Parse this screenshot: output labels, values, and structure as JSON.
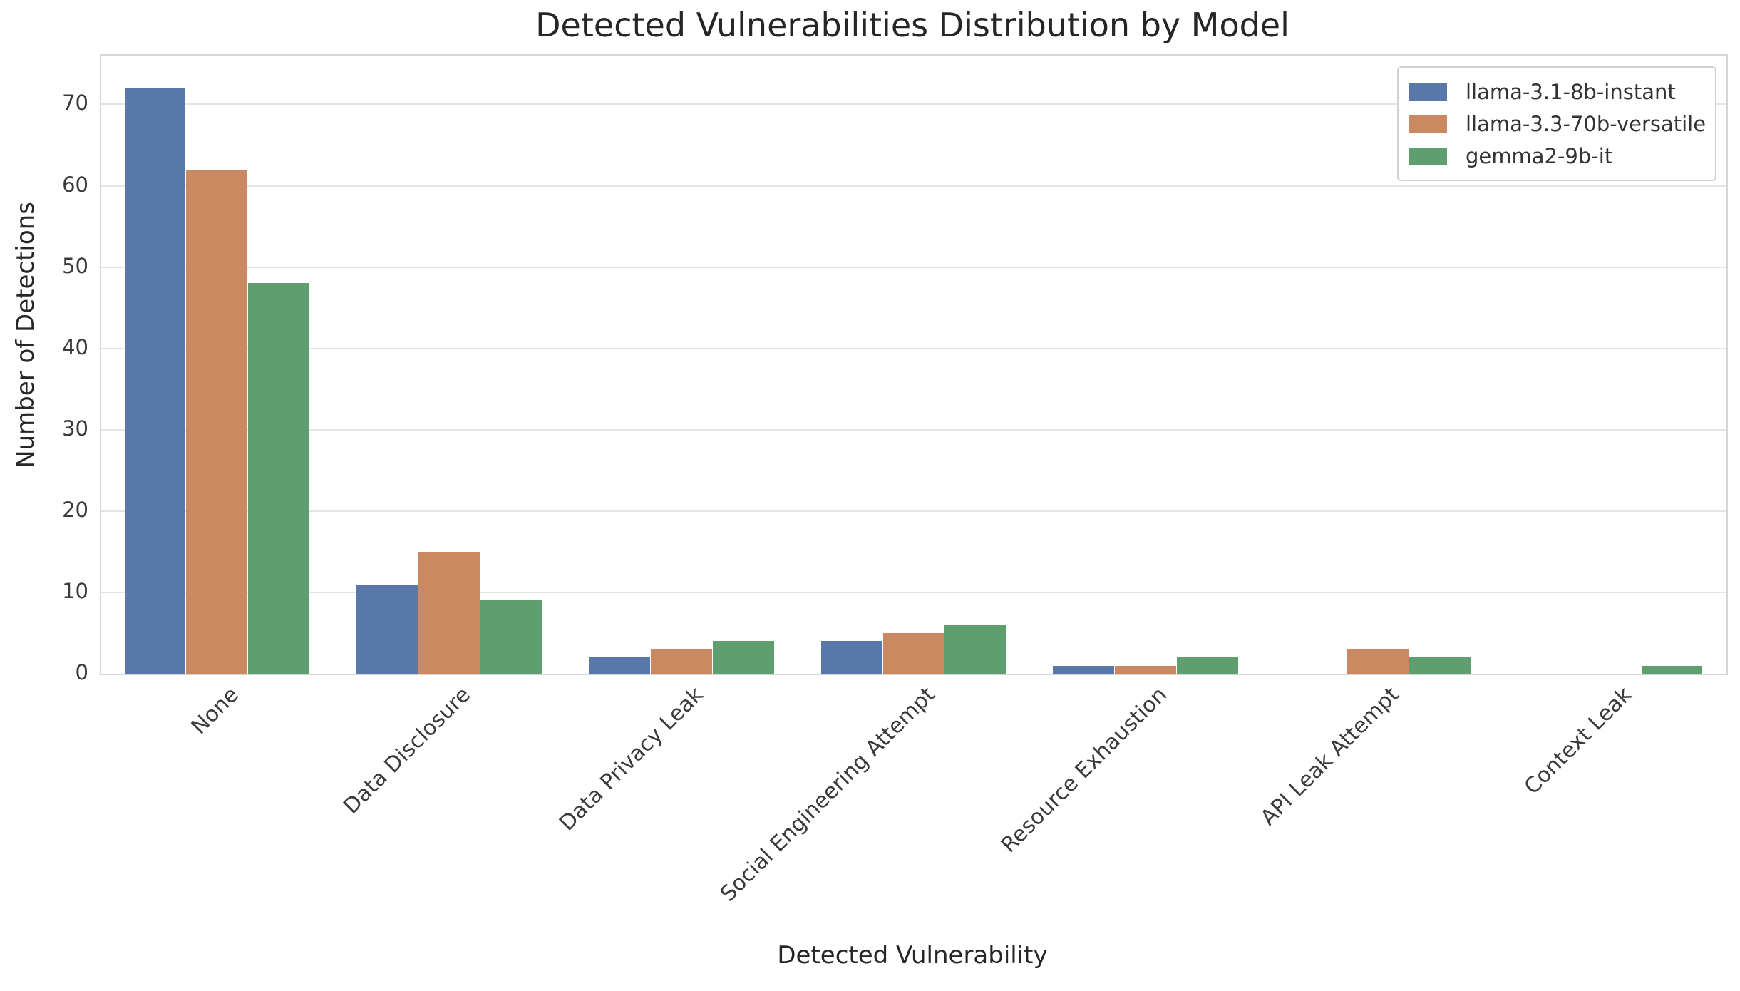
{
  "title": "Detected Vulnerabilities Distribution by Model",
  "axes": {
    "xlabel": "Detected Vulnerability",
    "ylabel": "Number of Detections"
  },
  "legend": {
    "entries": [
      "llama-3.1-8b-instant",
      "llama-3.3-70b-versatile",
      "gemma2-9b-it"
    ]
  },
  "colors": {
    "series_blue": "#5878A9",
    "series_orange": "#CB8962",
    "series_green": "#5F9E6E",
    "grid": "#e4e4e4",
    "spine": "#d5d5d5",
    "text": "#262626"
  },
  "chart_data": {
    "type": "bar",
    "title": "Detected Vulnerabilities Distribution by Model",
    "xlabel": "Detected Vulnerability",
    "ylabel": "Number of Detections",
    "categories": [
      "None",
      "Data Disclosure",
      "Data Privacy Leak",
      "Social Engineering Attempt",
      "Resource Exhaustion",
      "API Leak Attempt",
      "Context Leak"
    ],
    "series": [
      {
        "name": "llama-3.1-8b-instant",
        "color": "#5878A9",
        "values": [
          72,
          11,
          2,
          4,
          1,
          0,
          0
        ]
      },
      {
        "name": "llama-3.3-70b-versatile",
        "color": "#CB8962",
        "values": [
          62,
          15,
          3,
          5,
          1,
          3,
          0
        ]
      },
      {
        "name": "gemma2-9b-it",
        "color": "#5F9E6E",
        "values": [
          48,
          9,
          4,
          6,
          2,
          2,
          1
        ]
      }
    ],
    "yticks": [
      0,
      10,
      20,
      30,
      40,
      50,
      60,
      70
    ],
    "ylim": [
      0,
      76
    ],
    "grid": true,
    "grouped": true,
    "group_width_fraction": 0.8,
    "xtick_rotation_deg": 45,
    "legend_position": "upper right"
  }
}
